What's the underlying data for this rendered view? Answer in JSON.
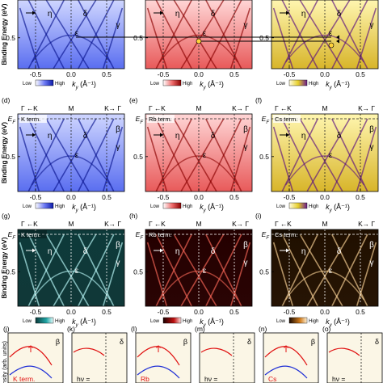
{
  "rows": [
    {
      "panels": [
        {
          "letter": "",
          "cmap": "blue",
          "term": "",
          "top_labels": false,
          "legend": [
            "Low",
            "High"
          ],
          "xlabel": "k",
          "xsub": "y",
          "xunit": " (Å⁻¹)"
        },
        {
          "letter": "",
          "cmap": "red",
          "term": "",
          "top_labels": false,
          "legend": [
            "Low",
            "High"
          ],
          "xlabel": "k",
          "xsub": "y",
          "xunit": " (Å⁻¹)"
        },
        {
          "letter": "",
          "cmap": "yellow",
          "term": "",
          "top_labels": false,
          "legend": [
            "Low",
            "High"
          ],
          "xlabel": "k",
          "xsub": "y",
          "xunit": " (Å⁻¹)"
        }
      ]
    },
    {
      "panels": [
        {
          "letter": "(d)",
          "cmap": "blue",
          "term": "K term.",
          "top_labels": true,
          "legend": [
            "Low",
            "High"
          ],
          "xlabel": "k",
          "xsub": "y",
          "xunit": " (Å⁻¹)"
        },
        {
          "letter": "(e)",
          "cmap": "red",
          "term": "Rb term.",
          "top_labels": true,
          "legend": [
            "Low",
            "High"
          ],
          "xlabel": "k",
          "xsub": "y",
          "xunit": " (Å⁻¹)"
        },
        {
          "letter": "(f)",
          "cmap": "yellow",
          "term": "Cs term.",
          "top_labels": true,
          "legend": [
            "Low",
            "High"
          ],
          "xlabel": "k",
          "xsub": "y",
          "xunit": " (Å⁻¹)"
        }
      ]
    },
    {
      "panels": [
        {
          "letter": "(g)",
          "cmap": "cyan",
          "term": "K term.",
          "top_labels": true,
          "legend": [
            "Low",
            "High"
          ],
          "xlabel": "k",
          "xsub": "y",
          "xunit": " (Å⁻¹)"
        },
        {
          "letter": "(h)",
          "cmap": "redhot",
          "term": "Rb term.",
          "top_labels": true,
          "legend": [
            "Low",
            "High"
          ],
          "xlabel": "k",
          "xsub": "y",
          "xunit": " (Å⁻¹)"
        },
        {
          "letter": "(i)",
          "cmap": "orange",
          "term": "Cs term.",
          "top_labels": true,
          "legend": [
            "Low",
            "High"
          ],
          "xlabel": "k",
          "xsub": "y",
          "xunit": " (Å⁻¹)"
        }
      ]
    }
  ],
  "top_axis": {
    "g1": "Γ",
    "k1": "K",
    "m": "M",
    "k2": "K",
    "g2": "Γ"
  },
  "ylabel": "Binding Energy (eV)",
  "ef_label": "E",
  "ef_sub": "F",
  "band_labels": {
    "eta": "η",
    "delta": "δ",
    "beta": "β",
    "gamma": "γ",
    "epsilon": "ε"
  },
  "x_ticks": [
    "-0.5",
    "0.0",
    "0.5"
  ],
  "y_ticks": [
    "0.5"
  ],
  "colors": {
    "blue": "#1f2fd6",
    "red": "#e01010",
    "yellow": "#e7d21a",
    "cyan": "#33d6d6",
    "redhot": "#ff2a1a",
    "orange": "#ffb040"
  },
  "bottom_panels": [
    {
      "letter": "(j)",
      "right": "β",
      "text": "K term.",
      "text_color": "#e01010"
    },
    {
      "letter": "(k)",
      "right": "δ",
      "text": "hν =",
      "text_color": "#000000"
    },
    {
      "letter": "(l)",
      "right": "β",
      "text": "Rb",
      "text_color": "#e01010"
    },
    {
      "letter": "(m)",
      "right": "δ",
      "text": "hν =",
      "text_color": "#000000"
    },
    {
      "letter": "(n)",
      "right": "β",
      "text": "Cs",
      "text_color": "#e01010"
    },
    {
      "letter": "(o)",
      "right": "δ",
      "text": "hν =",
      "text_color": "#000000"
    }
  ],
  "bottom_ylabel": "Intensity (arb. units)"
}
